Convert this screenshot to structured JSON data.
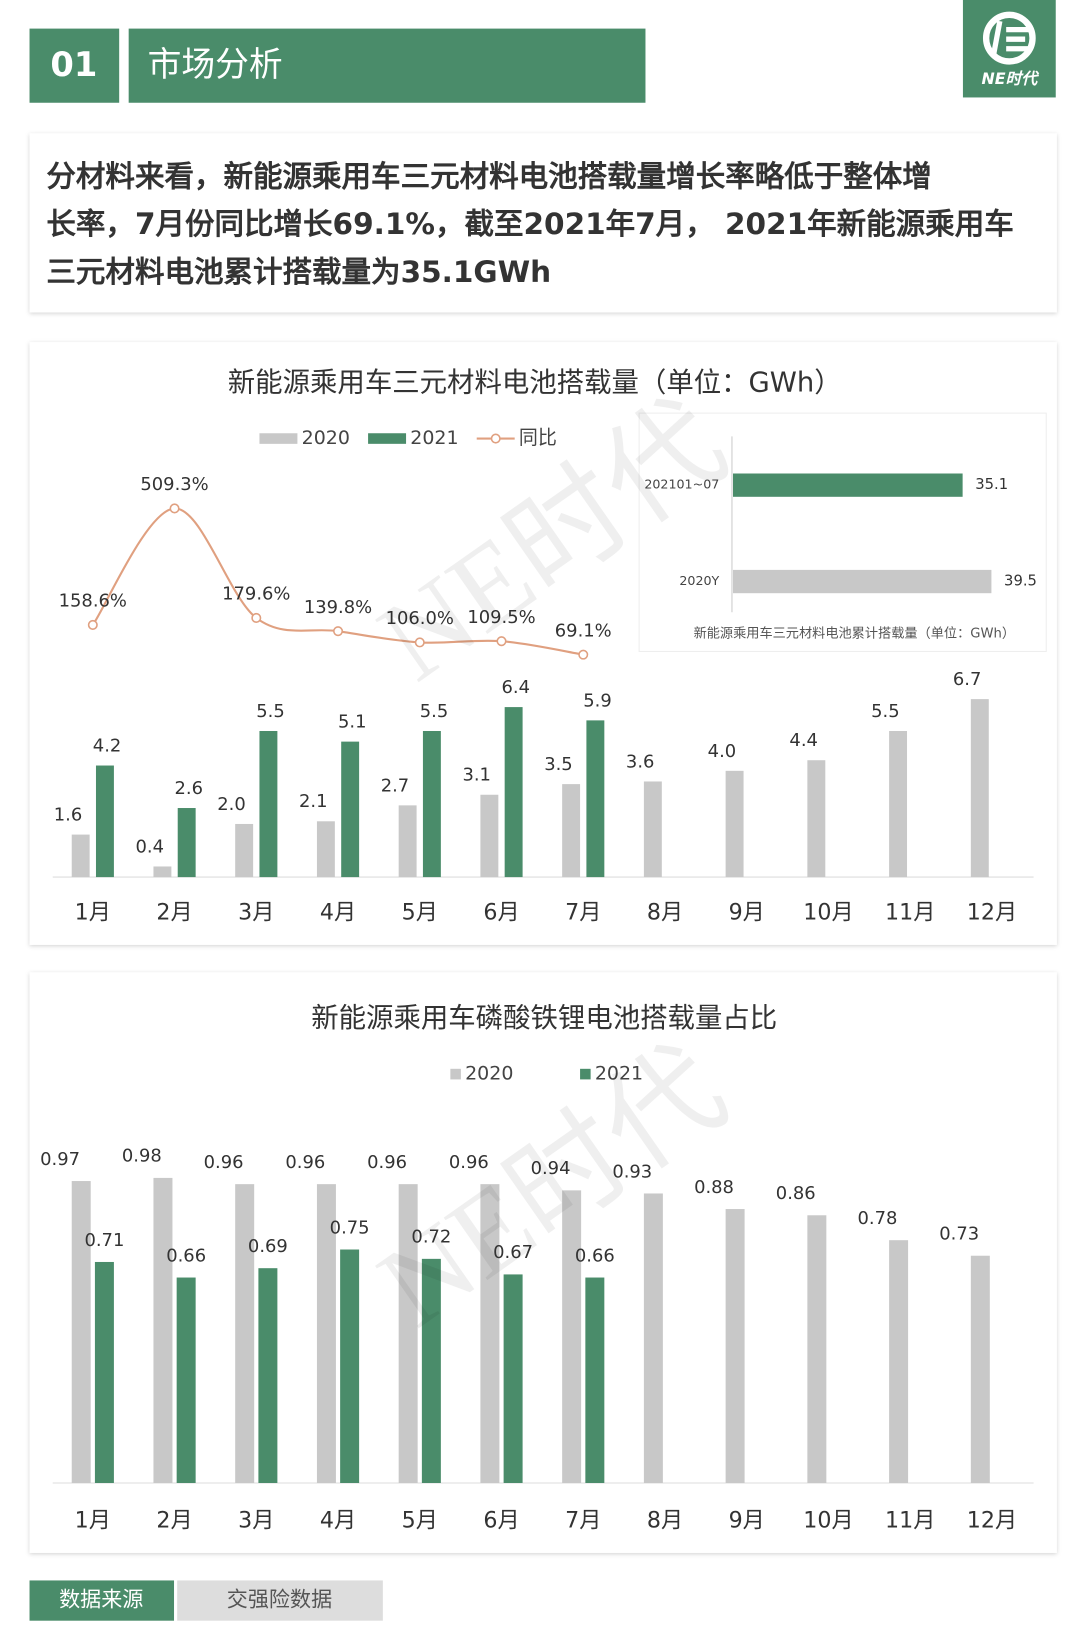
{
  "header": {
    "number": "01",
    "title": "市场分析",
    "logo": "NE时代"
  },
  "summary": [
    "分材料来看，新能源乘用车三元材料电池搭载量增长率略低于整体增",
    "长率，7月份同比增长69.1%，截至2021年7月， 2021年新能源乘用车",
    "三元材料电池累计搭载量为35.1GWh"
  ],
  "watermark": "NE时代",
  "chart_data": [
    {
      "type": "bar",
      "title": "新能源乘用车三元材料电池搭载量（单位：GWh）",
      "categories": [
        "1月",
        "2月",
        "3月",
        "4月",
        "5月",
        "6月",
        "7月",
        "8月",
        "9月",
        "10月",
        "11月",
        "12月"
      ],
      "series": [
        {
          "name": "2020",
          "color": "#c8c8c8",
          "values": [
            1.6,
            0.4,
            2.0,
            2.1,
            2.7,
            3.1,
            3.5,
            3.6,
            4.0,
            4.4,
            5.5,
            6.7
          ],
          "value_labels": [
            "1.6",
            "0.4",
            "2.0",
            "2.1",
            "2.7",
            "3.1",
            "3.5",
            "3.6",
            "4.0",
            "4.4",
            "5.5",
            "6.7"
          ]
        },
        {
          "name": "2021",
          "color": "#4a8c6a",
          "values": [
            4.2,
            2.6,
            5.5,
            5.1,
            5.5,
            6.4,
            5.9,
            null,
            null,
            null,
            null,
            null
          ],
          "value_labels": [
            "4.2",
            "2.6",
            "5.5",
            "5.1",
            "5.5",
            "6.4",
            "5.9",
            null,
            null,
            null,
            null,
            null
          ]
        },
        {
          "name": "同比",
          "color": "#e0a080",
          "type": "line",
          "values": [
            158.6,
            509.3,
            179.6,
            139.8,
            106.0,
            109.5,
            69.1,
            null,
            null,
            null,
            null,
            null
          ],
          "value_labels": [
            "158.6%",
            "509.3%",
            "179.6%",
            "139.8%",
            "106.0%",
            "109.5%",
            "69.1%",
            null,
            null,
            null,
            null,
            null
          ]
        }
      ]
    },
    {
      "type": "hbar",
      "title": "新能源乘用车三元材料电池累计搭载量（单位：GWh）",
      "categories": [
        "202101~07",
        "2020Y"
      ],
      "values": [
        35.1,
        39.5
      ],
      "colors": [
        "#4a8c6a",
        "#c8c8c8"
      ]
    },
    {
      "type": "bar",
      "title": "新能源乘用车磷酸铁锂电池搭载量占比",
      "categories": [
        "1月",
        "2月",
        "3月",
        "4月",
        "5月",
        "6月",
        "7月",
        "8月",
        "9月",
        "10月",
        "11月",
        "12月"
      ],
      "series": [
        {
          "name": "2020",
          "color": "#c8c8c8",
          "values": [
            0.97,
            0.98,
            0.96,
            0.96,
            0.96,
            0.96,
            0.94,
            0.93,
            0.88,
            0.86,
            0.78,
            0.73
          ]
        },
        {
          "name": "2021",
          "color": "#4a8c6a",
          "values": [
            0.71,
            0.66,
            0.69,
            0.75,
            0.72,
            0.67,
            0.66,
            null,
            null,
            null,
            null,
            null
          ]
        }
      ]
    }
  ],
  "footer": {
    "label": "数据来源",
    "source": "交强险数据"
  }
}
